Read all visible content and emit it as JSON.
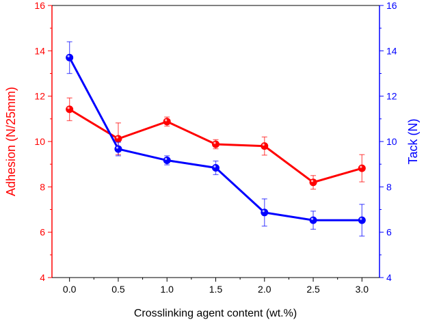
{
  "chart_data": {
    "type": "line",
    "title": "",
    "xlabel": "Crosslinking agent content (wt.%)",
    "ylabel_left": "Adhesion (N/25mm)",
    "ylabel_right": "Tack (N)",
    "x": [
      0.0,
      0.5,
      1.0,
      1.5,
      2.0,
      2.5,
      3.0
    ],
    "x_ticks": [
      "0.0",
      "0.5",
      "1.0",
      "1.5",
      "2.0",
      "2.5",
      "3.0"
    ],
    "xlim": [
      -0.18,
      3.18
    ],
    "ylim_left": [
      4,
      16
    ],
    "ylim_right": [
      4,
      16
    ],
    "y_ticks_left": [
      "4",
      "6",
      "8",
      "10",
      "12",
      "14",
      "16"
    ],
    "y_ticks_right": [
      "4",
      "6",
      "8",
      "10",
      "12",
      "14",
      "16"
    ],
    "grid": false,
    "series": [
      {
        "name": "Adhesion",
        "axis": "left",
        "color": "#ff0000",
        "values": [
          11.42,
          10.12,
          10.88,
          9.88,
          9.8,
          8.2,
          8.82
        ],
        "errors": [
          0.5,
          0.7,
          0.2,
          0.2,
          0.4,
          0.3,
          0.6
        ]
      },
      {
        "name": "Tack",
        "axis": "right",
        "color": "#0000ff",
        "values": [
          13.7,
          9.67,
          9.17,
          8.84,
          6.87,
          6.53,
          6.53
        ],
        "errors": [
          0.7,
          0.3,
          0.2,
          0.3,
          0.6,
          0.4,
          0.7
        ]
      }
    ]
  }
}
